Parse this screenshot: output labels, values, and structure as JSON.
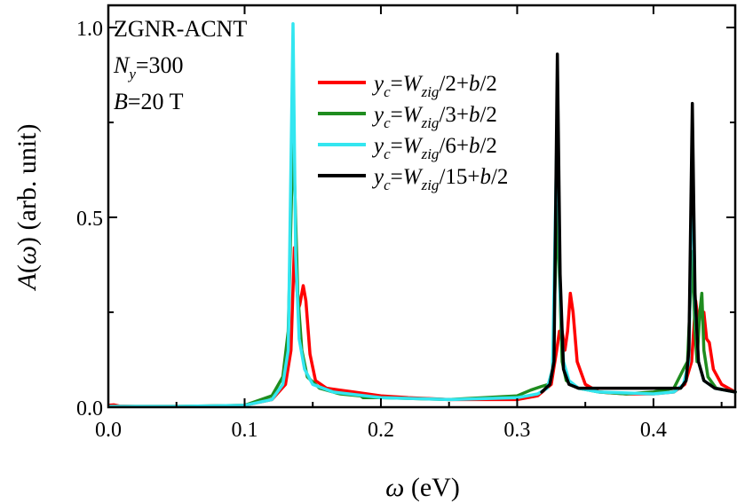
{
  "chart_data": {
    "type": "line",
    "xlabel": {
      "sym": "ω",
      "rest": " (eV)"
    },
    "ylabel": {
      "pre": "A",
      "open": "(",
      "sym": "ω",
      "close": ")",
      "rest": " (arb. unit)"
    },
    "xlim": [
      0.0,
      0.46
    ],
    "ylim": [
      0.0,
      1.0
    ],
    "xticks": [
      "0.0",
      "0.1",
      "0.2",
      "0.3",
      "0.4"
    ],
    "xtick_values": [
      0.0,
      0.1,
      0.2,
      0.3,
      0.4
    ],
    "yticks": [
      "0.0",
      "0.5",
      "1.0"
    ],
    "ytick_values": [
      0.0,
      0.5,
      1.0
    ],
    "grid": false,
    "legend_position": "top-center",
    "annotations": {
      "system": "ZGNR-ACNT",
      "ny": {
        "sym": "N",
        "sub": "y",
        "rest": "=300"
      },
      "bfield": {
        "sym": "B",
        "rest": "=20 T"
      }
    },
    "series": [
      {
        "name": "y_c=W_zig/2+b/2",
        "label_parts": [
          "y",
          "c",
          "=",
          "W",
          "zig",
          "/2+",
          "b",
          "/2"
        ],
        "color": "#ff0000",
        "points": [
          [
            0.0,
            0.005
          ],
          [
            0.004,
            0.006
          ],
          [
            0.008,
            0.003
          ],
          [
            0.02,
            0.002
          ],
          [
            0.06,
            0.002
          ],
          [
            0.1,
            0.005
          ],
          [
            0.12,
            0.02
          ],
          [
            0.13,
            0.06
          ],
          [
            0.134,
            0.15
          ],
          [
            0.1365,
            0.42
          ],
          [
            0.138,
            0.33
          ],
          [
            0.1395,
            0.26
          ],
          [
            0.1405,
            0.27
          ],
          [
            0.143,
            0.32
          ],
          [
            0.145,
            0.28
          ],
          [
            0.148,
            0.14
          ],
          [
            0.152,
            0.07
          ],
          [
            0.16,
            0.05
          ],
          [
            0.18,
            0.04
          ],
          [
            0.2,
            0.03
          ],
          [
            0.22,
            0.025
          ],
          [
            0.25,
            0.02
          ],
          [
            0.28,
            0.02
          ],
          [
            0.3,
            0.02
          ],
          [
            0.315,
            0.03
          ],
          [
            0.325,
            0.06
          ],
          [
            0.329,
            0.15
          ],
          [
            0.331,
            0.2
          ],
          [
            0.333,
            0.2
          ],
          [
            0.335,
            0.15
          ],
          [
            0.337,
            0.2
          ],
          [
            0.339,
            0.3
          ],
          [
            0.341,
            0.25
          ],
          [
            0.344,
            0.12
          ],
          [
            0.35,
            0.06
          ],
          [
            0.36,
            0.04
          ],
          [
            0.38,
            0.035
          ],
          [
            0.4,
            0.035
          ],
          [
            0.415,
            0.04
          ],
          [
            0.423,
            0.06
          ],
          [
            0.428,
            0.12
          ],
          [
            0.431,
            0.28
          ],
          [
            0.433,
            0.22
          ],
          [
            0.435,
            0.25
          ],
          [
            0.437,
            0.25
          ],
          [
            0.439,
            0.18
          ],
          [
            0.441,
            0.17
          ],
          [
            0.444,
            0.1
          ],
          [
            0.45,
            0.06
          ],
          [
            0.46,
            0.04
          ]
        ]
      },
      {
        "name": "y_c=W_zig/3+b/2",
        "label_parts": [
          "y",
          "c",
          "=",
          "W",
          "zig",
          "/3+",
          "b",
          "/2"
        ],
        "color": "#1e8c1e",
        "points": [
          [
            0.0,
            0.002
          ],
          [
            0.05,
            0.002
          ],
          [
            0.1,
            0.005
          ],
          [
            0.12,
            0.03
          ],
          [
            0.128,
            0.08
          ],
          [
            0.132,
            0.2
          ],
          [
            0.1355,
            0.72
          ],
          [
            0.137,
            0.55
          ],
          [
            0.139,
            0.3
          ],
          [
            0.142,
            0.15
          ],
          [
            0.146,
            0.08
          ],
          [
            0.155,
            0.05
          ],
          [
            0.17,
            0.035
          ],
          [
            0.185,
            0.03
          ],
          [
            0.187,
            0.025
          ],
          [
            0.2,
            0.025
          ],
          [
            0.25,
            0.02
          ],
          [
            0.3,
            0.03
          ],
          [
            0.31,
            0.045
          ],
          [
            0.318,
            0.055
          ],
          [
            0.323,
            0.06
          ],
          [
            0.326,
            0.1
          ],
          [
            0.3295,
            0.53
          ],
          [
            0.331,
            0.35
          ],
          [
            0.333,
            0.12
          ],
          [
            0.336,
            0.07
          ],
          [
            0.345,
            0.05
          ],
          [
            0.36,
            0.04
          ],
          [
            0.38,
            0.035
          ],
          [
            0.4,
            0.04
          ],
          [
            0.415,
            0.05
          ],
          [
            0.422,
            0.1
          ],
          [
            0.425,
            0.12
          ],
          [
            0.4285,
            0.41
          ],
          [
            0.4305,
            0.2
          ],
          [
            0.432,
            0.12
          ],
          [
            0.434,
            0.25
          ],
          [
            0.4355,
            0.3
          ],
          [
            0.437,
            0.15
          ],
          [
            0.44,
            0.08
          ],
          [
            0.446,
            0.05
          ],
          [
            0.46,
            0.04
          ]
        ]
      },
      {
        "name": "y_c=W_zig/6+b/2",
        "label_parts": [
          "y",
          "c",
          "=",
          "W",
          "zig",
          "/6+",
          "b",
          "/2"
        ],
        "color": "#33e6f0",
        "points": [
          [
            0.0,
            0.002
          ],
          [
            0.05,
            0.002
          ],
          [
            0.1,
            0.005
          ],
          [
            0.12,
            0.02
          ],
          [
            0.128,
            0.06
          ],
          [
            0.132,
            0.15
          ],
          [
            0.1355,
            1.01
          ],
          [
            0.1375,
            0.4
          ],
          [
            0.14,
            0.18
          ],
          [
            0.144,
            0.1
          ],
          [
            0.15,
            0.06
          ],
          [
            0.165,
            0.04
          ],
          [
            0.2,
            0.025
          ],
          [
            0.25,
            0.02
          ],
          [
            0.3,
            0.025
          ],
          [
            0.315,
            0.035
          ],
          [
            0.322,
            0.05
          ],
          [
            0.326,
            0.1
          ],
          [
            0.3295,
            0.79
          ],
          [
            0.3315,
            0.3
          ],
          [
            0.334,
            0.12
          ],
          [
            0.338,
            0.07
          ],
          [
            0.345,
            0.05
          ],
          [
            0.36,
            0.04
          ],
          [
            0.4,
            0.035
          ],
          [
            0.415,
            0.04
          ],
          [
            0.422,
            0.06
          ],
          [
            0.426,
            0.12
          ],
          [
            0.4285,
            0.68
          ],
          [
            0.4305,
            0.28
          ],
          [
            0.433,
            0.12
          ],
          [
            0.437,
            0.07
          ],
          [
            0.445,
            0.05
          ],
          [
            0.46,
            0.04
          ]
        ]
      },
      {
        "name": "y_c=W_zig/15+b/2",
        "label_parts": [
          "y",
          "c",
          "=",
          "W",
          "zig",
          "/15+",
          "b",
          "/2"
        ],
        "color": "#000000",
        "points": [
          [
            0.318,
            0.04
          ],
          [
            0.324,
            0.06
          ],
          [
            0.327,
            0.12
          ],
          [
            0.3295,
            0.93
          ],
          [
            0.3315,
            0.35
          ],
          [
            0.334,
            0.1
          ],
          [
            0.338,
            0.06
          ],
          [
            0.345,
            0.05
          ],
          [
            0.42,
            0.05
          ],
          [
            0.424,
            0.07
          ],
          [
            0.426,
            0.15
          ],
          [
            0.4285,
            0.8
          ],
          [
            0.4305,
            0.3
          ],
          [
            0.433,
            0.12
          ],
          [
            0.437,
            0.07
          ],
          [
            0.445,
            0.05
          ],
          [
            0.46,
            0.04
          ]
        ]
      }
    ]
  }
}
